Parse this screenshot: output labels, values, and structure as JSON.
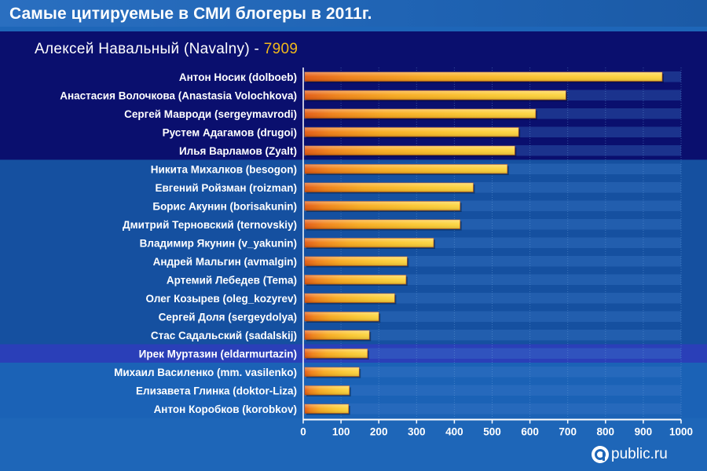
{
  "title": "Самые цитируемые в СМИ блогеры в 2011г.",
  "subtitle": {
    "label": "Алексей Навальный (Navalny) - ",
    "value": "7909"
  },
  "logo": {
    "text": "public.ru",
    "icon": "public-ru-logo-icon"
  },
  "colors": {
    "background": "#1e66b8",
    "top_band": "#0a0f6e",
    "middle_band": "#1550a0",
    "bar_fill": "#f7b21c",
    "bar_highlight": "#fde27a",
    "bar_shadow": "#d9560c",
    "text": "#ffffff",
    "accent": "#f2b91a"
  },
  "chart_data": {
    "type": "bar",
    "orientation": "horizontal",
    "title": "Самые цитируемые в СМИ блогеры в 2011г.",
    "xlim": [
      0,
      1000
    ],
    "ticks": [
      "0",
      "100",
      "200",
      "300",
      "400",
      "500",
      "600",
      "700",
      "800",
      "900",
      "1000"
    ],
    "grid": true,
    "categories": [
      "Антон Носик (dolboeb)",
      "Анастасия Волочкова (Anastasia Volochkova)",
      "Сергей Мавроди (sergeymavrodi)",
      "Рустем Адагамов (drugoi)",
      "Илья Варламов (Zyalt)",
      "Никита Михалков (besogon)",
      "Евгений Ройзман (roizman)",
      "Борис Акунин (borisakunin)",
      "Дмитрий Терновский (ternovskiy)",
      "Владимир Якунин (v_yakunin)",
      "Андрей Мальгин (avmalgin)",
      "Артемий Лебедев (Tema)",
      "Олег Козырев (oleg_kozyrev)",
      "Сергей Доля (sergeydolya)",
      "Стас Садальский (sadalskij)",
      "Ирек Муртазин (eldarmurtazin)",
      "Михаил Василенко (mm. vasilenko)",
      "Елизавета Глинка (doktor-Liza)",
      "Антон Коробков (korobkov)"
    ],
    "values": [
      950,
      695,
      615,
      570,
      560,
      540,
      450,
      415,
      415,
      345,
      275,
      272,
      242,
      200,
      175,
      170,
      148,
      122,
      120
    ]
  }
}
